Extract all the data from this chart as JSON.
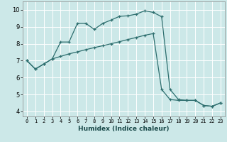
{
  "xlabel": "Humidex (Indice chaleur)",
  "background_color": "#cce8e8",
  "line_color": "#2d6e6e",
  "grid_color": "#ffffff",
  "xlim": [
    -0.5,
    23.5
  ],
  "ylim": [
    3.7,
    10.5
  ],
  "xticks": [
    0,
    1,
    2,
    3,
    4,
    5,
    6,
    7,
    8,
    9,
    10,
    11,
    12,
    13,
    14,
    15,
    16,
    17,
    18,
    19,
    20,
    21,
    22,
    23
  ],
  "yticks": [
    4,
    5,
    6,
    7,
    8,
    9,
    10
  ],
  "line1_x": [
    0,
    1,
    2,
    3,
    4,
    5,
    6,
    7,
    8,
    9,
    10,
    11,
    12,
    13,
    14,
    15,
    16,
    17,
    18,
    19,
    20,
    21,
    22,
    23
  ],
  "line1_y": [
    7.0,
    6.5,
    6.8,
    7.1,
    8.1,
    8.1,
    9.2,
    9.2,
    8.85,
    9.2,
    9.4,
    9.62,
    9.65,
    9.75,
    9.95,
    9.85,
    9.6,
    5.3,
    4.7,
    4.65,
    4.65,
    4.35,
    4.3,
    4.5
  ],
  "line2_x": [
    0,
    1,
    2,
    3,
    4,
    5,
    6,
    7,
    8,
    9,
    10,
    11,
    12,
    13,
    14,
    15,
    16,
    17,
    18,
    19,
    20,
    21,
    22,
    23
  ],
  "line2_y": [
    7.0,
    6.5,
    6.8,
    7.1,
    7.25,
    7.4,
    7.52,
    7.65,
    7.77,
    7.88,
    8.0,
    8.12,
    8.25,
    8.37,
    8.5,
    8.6,
    5.3,
    4.7,
    4.65,
    4.65,
    4.65,
    4.35,
    4.3,
    4.5
  ]
}
